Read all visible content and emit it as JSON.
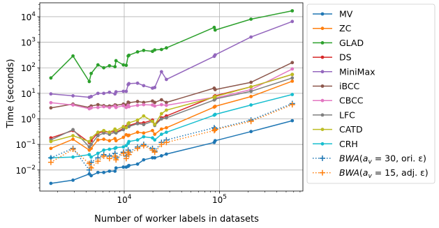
{
  "chart_data": {
    "type": "line",
    "title": "",
    "xlabel": "Number of worker labels in datasets",
    "ylabel": "Time (seconds)",
    "xscale": "log",
    "yscale": "log",
    "xlim": [
      1300,
      750000
    ],
    "ylim": [
      0.0015,
      35000
    ],
    "x_ticks": [
      {
        "value": 10000,
        "base": "10",
        "exp": "4"
      },
      {
        "value": 100000,
        "base": "10",
        "exp": "5"
      }
    ],
    "y_ticks": [
      {
        "value": 0.01,
        "base": "10",
        "exp": "−2"
      },
      {
        "value": 0.1,
        "base": "10",
        "exp": "−1"
      },
      {
        "value": 1,
        "base": "10",
        "exp": "0"
      },
      {
        "value": 10,
        "base": "10",
        "exp": "1"
      },
      {
        "value": 100,
        "base": "10",
        "exp": "2"
      },
      {
        "value": 1000,
        "base": "10",
        "exp": "3"
      },
      {
        "value": 10000,
        "base": "10",
        "exp": "4"
      }
    ],
    "grid": true,
    "legend_position": "outside-right",
    "x": [
      1700,
      2900,
      4300,
      4500,
      5300,
      6100,
      7000,
      8000,
      8200,
      9800,
      10500,
      11000,
      11200,
      13800,
      16000,
      19800,
      20900,
      24600,
      27700,
      88000,
      90000,
      214000,
      580000
    ],
    "series": [
      {
        "name": "MV",
        "color": "#1f77b4",
        "style": "solid",
        "marker": "dot",
        "values": [
          0.003,
          0.004,
          0.007,
          0.006,
          0.008,
          0.008,
          0.009,
          0.009,
          0.012,
          0.013,
          0.013,
          0.014,
          0.015,
          0.017,
          0.025,
          0.03,
          0.03,
          0.036,
          0.042,
          0.12,
          0.14,
          0.32,
          0.85
        ]
      },
      {
        "name": "ZC",
        "color": "#ff7f0e",
        "style": "solid",
        "marker": "dot",
        "values": [
          0.07,
          0.16,
          0.06,
          0.07,
          0.15,
          0.16,
          0.14,
          0.17,
          0.14,
          0.19,
          0.24,
          0.22,
          0.23,
          0.3,
          0.28,
          0.35,
          0.25,
          0.4,
          0.45,
          2.9,
          3.1,
          7.5,
          30
        ]
      },
      {
        "name": "GLAD",
        "color": "#2ca02c",
        "style": "solid",
        "marker": "dot",
        "values": [
          40,
          290,
          29,
          60,
          130,
          100,
          120,
          110,
          190,
          130,
          125,
          290,
          310,
          420,
          480,
          440,
          500,
          520,
          600,
          3800,
          3000,
          8000,
          17000
        ]
      },
      {
        "name": "DS",
        "color": "#d62728",
        "style": "solid",
        "marker": "dot",
        "values": [
          0.18,
          0.35,
          0.12,
          0.14,
          0.28,
          0.32,
          0.3,
          0.33,
          0.3,
          0.42,
          0.5,
          0.6,
          0.55,
          0.7,
          0.7,
          0.9,
          0.6,
          1.1,
          1.3,
          7.5,
          8,
          18,
          55
        ]
      },
      {
        "name": "MiniMax",
        "color": "#9467bd",
        "style": "solid",
        "marker": "dot",
        "values": [
          9.5,
          8,
          7,
          7.5,
          10,
          10,
          11,
          9.5,
          11.5,
          12,
          12,
          22,
          24,
          25,
          20,
          16,
          17,
          70,
          35,
          280,
          320,
          1600,
          6500
        ]
      },
      {
        "name": "iBCC",
        "color": "#8c564b",
        "style": "solid",
        "marker": "dot",
        "values": [
          2.7,
          3.8,
          2.8,
          3.2,
          3.6,
          3.3,
          3.2,
          3.5,
          3.4,
          3.8,
          3.5,
          4.5,
          4.3,
          4.8,
          4.4,
          5,
          4.4,
          5.6,
          4.4,
          16,
          14,
          27,
          160
        ]
      },
      {
        "name": "CBCC",
        "color": "#e377c2",
        "style": "solid",
        "marker": "dot",
        "values": [
          4.3,
          3.5,
          2.5,
          2.7,
          2.8,
          3,
          2.8,
          3.2,
          2.8,
          3.3,
          2.8,
          3.4,
          3,
          3.4,
          3.6,
          3.5,
          3.2,
          3.6,
          3.4,
          7,
          6.5,
          14,
          90
        ]
      },
      {
        "name": "LFC",
        "color": "#7f7f7f",
        "style": "solid",
        "marker": "dot",
        "values": [
          0.15,
          0.38,
          0.08,
          0.1,
          0.22,
          0.28,
          0.25,
          0.3,
          0.28,
          0.38,
          0.45,
          0.55,
          0.5,
          0.65,
          0.6,
          0.8,
          0.55,
          1,
          1.1,
          5.5,
          6,
          12,
          40
        ]
      },
      {
        "name": "CATD",
        "color": "#bcbd22",
        "style": "solid",
        "marker": "dot",
        "values": [
          0.13,
          0.22,
          0.13,
          0.18,
          0.3,
          0.35,
          0.3,
          0.4,
          0.35,
          0.5,
          0.45,
          0.65,
          0.7,
          0.9,
          1.3,
          0.8,
          0.6,
          1.6,
          2.2,
          7,
          7.5,
          18,
          55
        ]
      },
      {
        "name": "CRH",
        "color": "#17becf",
        "style": "solid",
        "marker": "dot",
        "values": [
          0.03,
          0.032,
          0.04,
          0.032,
          0.045,
          0.06,
          0.065,
          0.07,
          0.075,
          0.08,
          0.09,
          0.11,
          0.13,
          0.15,
          0.2,
          0.18,
          0.15,
          0.25,
          0.3,
          1.4,
          1.5,
          3.5,
          9
        ]
      },
      {
        "name_parts": [
          "BWA",
          "(a",
          "v",
          " = 30, ori. ε)"
        ],
        "color": "#1f77b4",
        "style": "dotted",
        "marker": "plus",
        "values": [
          0.03,
          0.07,
          0.01,
          0.02,
          0.03,
          0.04,
          0.035,
          0.045,
          0.03,
          0.05,
          0.035,
          0.06,
          0.05,
          0.08,
          0.1,
          0.07,
          0.055,
          0.12,
          0.15,
          0.45,
          0.4,
          0.9,
          4
        ]
      },
      {
        "name_parts": [
          "BWA",
          "(a",
          "v",
          " = 15, adj. ε)"
        ],
        "color": "#ff7f0e",
        "style": "dotted",
        "marker": "plus",
        "values": [
          0.02,
          0.065,
          0.018,
          0.012,
          0.022,
          0.035,
          0.028,
          0.035,
          0.025,
          0.045,
          0.028,
          0.05,
          0.04,
          0.07,
          0.09,
          0.06,
          0.05,
          0.1,
          0.12,
          0.35,
          0.38,
          0.8,
          3.6
        ]
      }
    ]
  }
}
